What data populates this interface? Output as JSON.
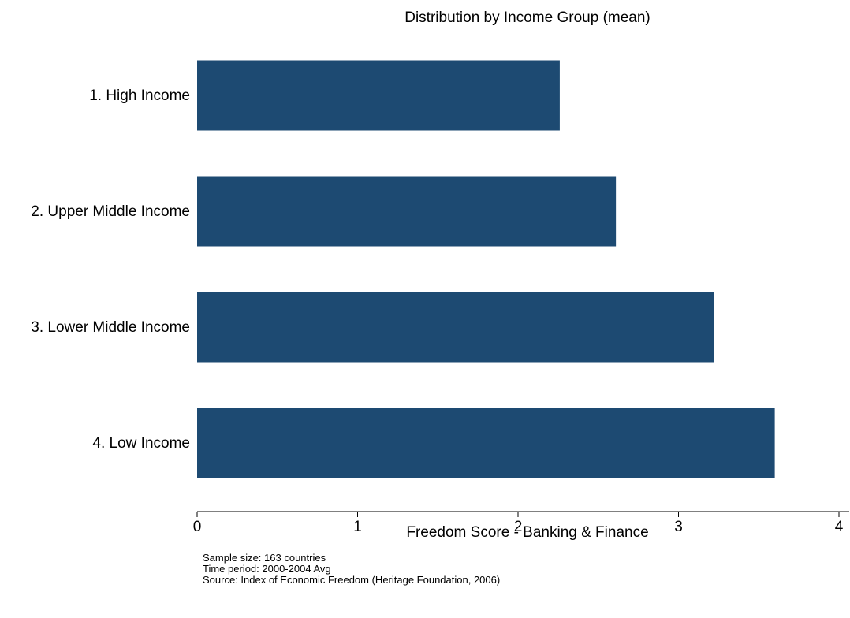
{
  "chart_data": {
    "type": "bar",
    "orientation": "horizontal",
    "title": "Distribution by Income Group (mean)",
    "xlabel": "Freedom Score - Banking & Finance",
    "ylabel": "",
    "categories": [
      "1. High Income",
      "2. Upper Middle Income",
      "3. Lower Middle Income",
      "4. Low Income"
    ],
    "values": [
      2.26,
      2.61,
      3.22,
      3.6
    ],
    "xlim": [
      0,
      4
    ],
    "xticks": [
      0,
      1,
      2,
      3,
      4
    ],
    "grid": false,
    "bar_color": "#1d4a72"
  },
  "notes": {
    "sample_size": "Sample size: 163 countries",
    "time_period": "Time period: 2000-2004 Avg",
    "source": "Source: Index of Economic Freedom (Heritage Foundation, 2006)"
  }
}
